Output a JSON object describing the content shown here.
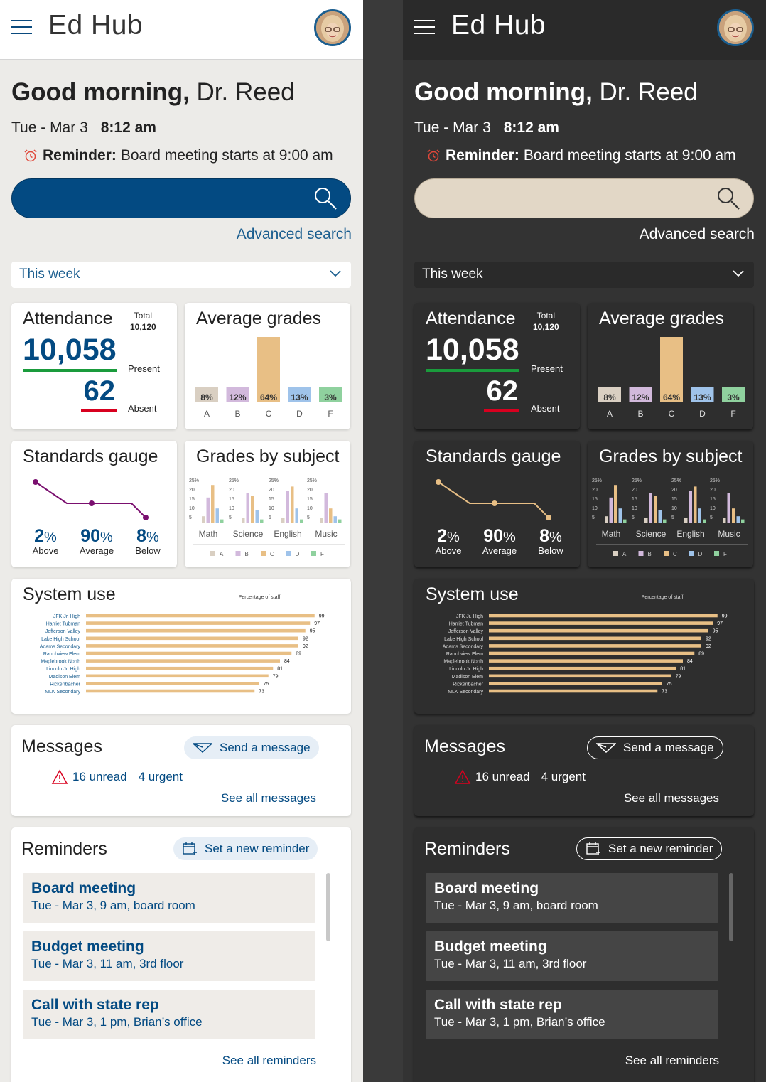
{
  "app": {
    "title": "Ed Hub"
  },
  "greeting": {
    "prefix": "Good morning,",
    "name": "Dr. Reed"
  },
  "date": "Tue - Mar 3",
  "time": "8:12 am",
  "reminder": {
    "label": "Reminder:",
    "text": "Board meeting starts at 9:00 am"
  },
  "search": {
    "placeholder": ""
  },
  "advanced_search": "Advanced search",
  "period": "This week",
  "attendance": {
    "title": "Attendance",
    "total_label": "Total",
    "total": "10,120",
    "present": "10,058",
    "present_label": "Present",
    "absent": "62",
    "absent_label": "Absent"
  },
  "average_grades": {
    "title": "Average grades"
  },
  "standards": {
    "title": "Standards gauge",
    "stats": [
      {
        "value": "2",
        "unit": "%",
        "label": "Above"
      },
      {
        "value": "90",
        "unit": "%",
        "label": "Average"
      },
      {
        "value": "8",
        "unit": "%",
        "label": "Below"
      }
    ]
  },
  "grades_by_subject": {
    "title": "Grades by subject"
  },
  "system_use": {
    "title": "System use"
  },
  "messages": {
    "title": "Messages",
    "send_label": "Send a message",
    "unread": "16 unread",
    "urgent": "4 urgent",
    "see_all": "See all messages"
  },
  "reminders": {
    "title": "Reminders",
    "new_label": "Set a new reminder",
    "items": [
      {
        "title": "Board meeting",
        "detail": "Tue - Mar 3, 9 am, board room"
      },
      {
        "title": "Budget meeting",
        "detail": "Tue - Mar 3, 11 am, 3rd floor"
      },
      {
        "title": "Call with state rep",
        "detail": "Tue - Mar 3, 1 pm, Brian’s office"
      }
    ],
    "see_all": "See all reminders"
  },
  "colors": {
    "grade_A": "#d9cfc2",
    "grade_B": "#d2b9dc",
    "grade_C": "#e8bf85",
    "grade_D": "#9fc3ea",
    "grade_E": "#8fd19e",
    "gauge_light": "#7a0f6f",
    "gauge_dark": "#e8bf85"
  },
  "chart_data": [
    {
      "type": "bar",
      "title": "Average grades",
      "categories": [
        "A",
        "B",
        "C",
        "D",
        "F"
      ],
      "values": [
        8,
        12,
        64,
        13,
        3
      ],
      "labels": [
        "8%",
        "12%",
        "64%",
        "13%",
        "3%"
      ]
    },
    {
      "type": "line",
      "title": "Standards gauge",
      "categories": [
        "Above",
        "Average",
        "Below"
      ],
      "values": [
        2,
        90,
        8
      ]
    },
    {
      "type": "bar",
      "title": "Grades by subject",
      "categories": [
        "Math",
        "Science",
        "English",
        "Music"
      ],
      "legend": [
        "A",
        "B",
        "C",
        "D",
        "F"
      ],
      "yticks": [
        "25%",
        "20",
        "15",
        "10",
        "5"
      ],
      "ylim": [
        0,
        25
      ],
      "series": [
        {
          "name": "A",
          "values": [
            4,
            3,
            3,
            3
          ]
        },
        {
          "name": "B",
          "values": [
            16,
            19,
            20,
            19
          ]
        },
        {
          "name": "C",
          "values": [
            24,
            17,
            23,
            9
          ]
        },
        {
          "name": "D",
          "values": [
            9,
            8,
            9,
            4
          ]
        },
        {
          "name": "F",
          "values": [
            2,
            2,
            2,
            2
          ]
        }
      ]
    },
    {
      "type": "bar",
      "title": "System use",
      "subtitle": "Percentage of staff",
      "orientation": "horizontal",
      "categories": [
        "JFK Jr. High",
        "Harriet Tubman",
        "Jefferson Valley",
        "Lake High School",
        "Adams Secondary",
        "Ranchview Elem",
        "Maplebrook North",
        "Lincoln Jr. High",
        "Madison Elem",
        "Rickenbacher",
        "MLK Secondary"
      ],
      "values": [
        99,
        97,
        95,
        92,
        92,
        89,
        84,
        81,
        79,
        75,
        73
      ],
      "xlim": [
        0,
        100
      ]
    }
  ]
}
